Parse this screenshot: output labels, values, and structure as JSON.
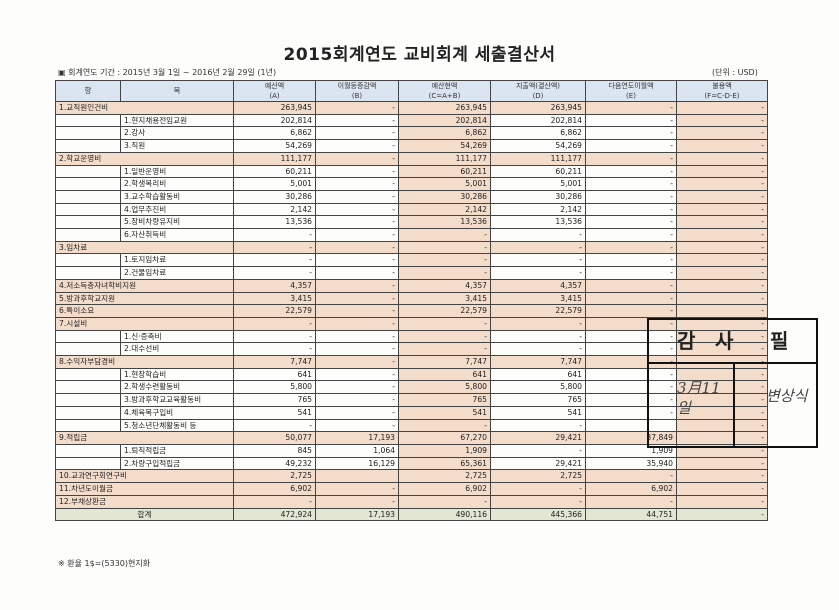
{
  "title": "2015회계연도 교비회계 세출결산서",
  "period": "▣ 회계연도 기간 : 2015년 3월 1일 ~ 2016년 2월 29일 (1년)",
  "unit": "(단위 : USD)",
  "headers": {
    "hang": "항",
    "mok": "목",
    "a": "예산액",
    "a_sub": "(A)",
    "b": "이월등증감액",
    "b_sub": "(B)",
    "c": "예산현액",
    "c_sub": "(C=A+B)",
    "d": "지출액(결산액)",
    "d_sub": "(D)",
    "e": "다음연도이월액",
    "e_sub": "(E)",
    "f": "불용액",
    "f_sub": "(F=C-D-E)"
  },
  "rows": [
    {
      "type": "main",
      "label": "1.교직원인건비",
      "a": "263,945",
      "b": "-",
      "c": "263,945",
      "d": "263,945",
      "e": "-",
      "f": "-"
    },
    {
      "type": "sub",
      "label": "1.현지채용전임교원",
      "a": "202,814",
      "b": "-",
      "c": "202,814",
      "d": "202,814",
      "e": "-",
      "f": "-"
    },
    {
      "type": "sub",
      "label": "2.강사",
      "a": "6,862",
      "b": "-",
      "c": "6,862",
      "d": "6,862",
      "e": "-",
      "f": "-"
    },
    {
      "type": "sub",
      "label": "3.직원",
      "a": "54,269",
      "b": "-",
      "c": "54,269",
      "d": "54,269",
      "e": "-",
      "f": "-"
    },
    {
      "type": "main",
      "label": "2.학교운영비",
      "a": "111,177",
      "b": "-",
      "c": "111,177",
      "d": "111,177",
      "e": "-",
      "f": "-"
    },
    {
      "type": "sub",
      "label": "1.일반운영비",
      "a": "60,211",
      "b": "-",
      "c": "60,211",
      "d": "60,211",
      "e": "-",
      "f": "-"
    },
    {
      "type": "sub",
      "label": "2.학생복리비",
      "a": "5,001",
      "b": "-",
      "c": "5,001",
      "d": "5,001",
      "e": "-",
      "f": "-"
    },
    {
      "type": "sub",
      "label": "3.교수학습활동비",
      "a": "30,286",
      "b": "-",
      "c": "30,286",
      "d": "30,286",
      "e": "-",
      "f": "-"
    },
    {
      "type": "sub",
      "label": "4.업무추진비",
      "a": "2,142",
      "b": "-",
      "c": "2,142",
      "d": "2,142",
      "e": "-",
      "f": "-"
    },
    {
      "type": "sub",
      "label": "5.장비차량유지비",
      "a": "13,536",
      "b": "-",
      "c": "13,536",
      "d": "13,536",
      "e": "-",
      "f": "-"
    },
    {
      "type": "sub",
      "label": "6.자산취득비",
      "a": "-",
      "b": "-",
      "c": "-",
      "d": "-",
      "e": "-",
      "f": "-"
    },
    {
      "type": "main",
      "label": "3.임차료",
      "a": "-",
      "b": "-",
      "c": "-",
      "d": "-",
      "e": "-",
      "f": "-"
    },
    {
      "type": "sub",
      "label": "1.토지임차료",
      "a": "-",
      "b": "-",
      "c": "-",
      "d": "-",
      "e": "-",
      "f": "-"
    },
    {
      "type": "sub",
      "label": "2.건물임차료",
      "a": "-",
      "b": "-",
      "c": "-",
      "d": "-",
      "e": "-",
      "f": "-"
    },
    {
      "type": "main",
      "label": "4.저소득층자녀학비지원",
      "a": "4,357",
      "b": "-",
      "c": "4,357",
      "d": "4,357",
      "e": "-",
      "f": "-"
    },
    {
      "type": "main",
      "label": "5.방과후학교지원",
      "a": "3,415",
      "b": "-",
      "c": "3,415",
      "d": "3,415",
      "e": "-",
      "f": "-"
    },
    {
      "type": "main",
      "label": "6.특이소요",
      "a": "22,579",
      "b": "-",
      "c": "22,579",
      "d": "22,579",
      "e": "-",
      "f": "-"
    },
    {
      "type": "main",
      "label": "7.시설비",
      "a": "-",
      "b": "-",
      "c": "-",
      "d": "-",
      "e": "-",
      "f": "-"
    },
    {
      "type": "sub",
      "label": "1.신·증축비",
      "a": "-",
      "b": "-",
      "c": "-",
      "d": "-",
      "e": "-",
      "f": "-"
    },
    {
      "type": "sub",
      "label": "2.대수선비",
      "a": "-",
      "b": "-",
      "c": "-",
      "d": "-",
      "e": "-",
      "f": "-"
    },
    {
      "type": "main",
      "label": "8.수익자부담경비",
      "a": "7,747",
      "b": "-",
      "c": "7,747",
      "d": "7,747",
      "e": "-",
      "f": "-"
    },
    {
      "type": "sub",
      "label": "1.현장학습비",
      "a": "641",
      "b": "-",
      "c": "641",
      "d": "641",
      "e": "-",
      "f": "-"
    },
    {
      "type": "sub",
      "label": "2.학생수련활동비",
      "a": "5,800",
      "b": "-",
      "c": "5,800",
      "d": "5,800",
      "e": "-",
      "f": "-"
    },
    {
      "type": "sub",
      "label": "3.방과후학교교육활동비",
      "a": "765",
      "b": "-",
      "c": "765",
      "d": "765",
      "e": "-",
      "f": "-"
    },
    {
      "type": "sub",
      "label": "4.체육복구입비",
      "a": "541",
      "b": "-",
      "c": "541",
      "d": "541",
      "e": "-",
      "f": "-"
    },
    {
      "type": "sub",
      "label": "5.청소년단체활동비 등",
      "a": "-",
      "b": "-",
      "c": "-",
      "d": "-",
      "e": "",
      "f": "-"
    },
    {
      "type": "main",
      "label": "9.적립금",
      "a": "50,077",
      "b": "17,193",
      "c": "67,270",
      "d": "29,421",
      "e": "37,849",
      "f": "-"
    },
    {
      "type": "sub",
      "label": "1.퇴직적립금",
      "a": "845",
      "b": "1,064",
      "c": "1,909",
      "d": "-",
      "e": "1,909",
      "f": "-"
    },
    {
      "type": "sub",
      "label": "2.차량구입적립금",
      "a": "49,232",
      "b": "16,129",
      "c": "65,361",
      "d": "29,421",
      "e": "35,940",
      "f": "-"
    },
    {
      "type": "main",
      "label": "10.교과연구회연구비",
      "a": "2,725",
      "b": "",
      "c": "2,725",
      "d": "2,725",
      "e": "-",
      "f": "-"
    },
    {
      "type": "main",
      "label": "11.차년도이월금",
      "a": "6,902",
      "b": "-",
      "c": "6,902",
      "d": "-",
      "e": "6,902",
      "f": "-"
    },
    {
      "type": "main",
      "label": "12.부채상환금",
      "a": "-",
      "b": "-",
      "c": "-",
      "d": "-",
      "e": "-",
      "f": "-"
    }
  ],
  "total": {
    "label": "합계",
    "a": "472,924",
    "b": "17,193",
    "c": "490,116",
    "d": "445,366",
    "e": "44,751",
    "f": "-"
  },
  "note": "※ 환율 1$=(5330)현지화",
  "stamp": {
    "c1": "감",
    "c2": "사",
    "c3": "필",
    "date": "3月11일",
    "signature": "변상식"
  }
}
